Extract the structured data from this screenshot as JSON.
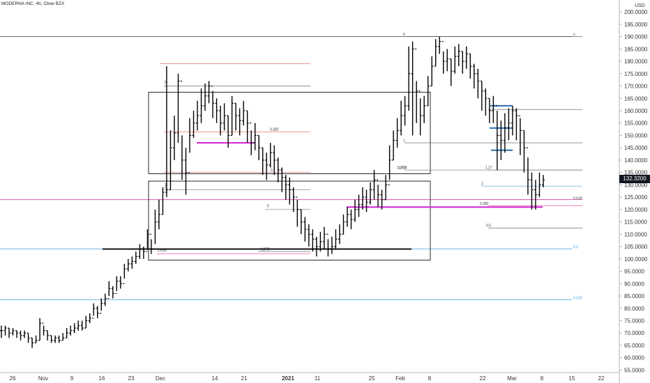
{
  "header": {
    "title": "MODERNA INC, 4h, Cboe BZX"
  },
  "currency": "USD",
  "last_price": "132.3200",
  "chart_data": {
    "type": "candlestick",
    "title": "MODERNA INC, 4h, Cboe BZX",
    "ylim": [
      54,
      202
    ],
    "y_ticks": [
      55,
      60,
      65,
      70,
      75,
      80,
      85,
      90,
      95,
      100,
      105,
      110,
      115,
      120,
      125,
      130,
      135,
      140,
      145,
      150,
      155,
      160,
      165,
      170,
      175,
      180,
      185,
      190,
      195,
      200
    ],
    "x_ticks": [
      "26",
      "Nov",
      "9",
      "16",
      "23",
      "Dec",
      "14",
      "21",
      "2021",
      "11",
      "25",
      "Feb",
      "8",
      "22",
      "Mar",
      "8",
      "15",
      "22"
    ],
    "ohlc_closes": [
      71,
      72,
      70,
      71,
      70,
      69,
      70,
      68,
      66,
      67,
      74,
      71,
      69,
      67,
      68,
      67,
      68,
      70,
      71,
      72,
      73,
      72,
      75,
      76,
      80,
      78,
      82,
      84,
      88,
      86,
      91,
      90,
      96,
      98,
      99,
      101,
      104,
      103,
      110,
      104,
      115,
      118,
      127,
      128,
      145,
      151,
      172,
      140,
      135,
      150,
      155,
      158,
      162,
      166,
      170,
      163,
      160,
      155,
      158,
      150,
      163,
      158,
      156,
      160,
      155,
      147,
      150,
      145,
      140,
      138,
      143,
      140,
      136,
      133,
      130,
      128,
      125,
      120,
      115,
      112,
      110,
      108,
      105,
      107,
      110,
      104,
      105,
      108,
      110,
      115,
      118,
      116,
      120,
      122,
      125,
      123,
      128,
      132,
      126,
      124,
      130,
      140,
      148,
      152,
      158,
      162,
      175,
      185,
      168,
      158,
      162,
      170,
      178,
      186,
      188,
      180,
      181,
      176,
      182,
      184,
      180,
      183,
      178,
      175,
      172,
      168,
      165,
      160,
      162,
      150,
      148,
      153,
      155,
      160,
      158,
      152,
      145,
      132,
      128,
      126,
      130,
      132
    ],
    "ohlc_highs": [
      73,
      73,
      72,
      72,
      71,
      71,
      71,
      70,
      68,
      69,
      76,
      73,
      71,
      69,
      69,
      69,
      70,
      72,
      73,
      74,
      75,
      75,
      77,
      78,
      82,
      81,
      84,
      86,
      91,
      89,
      93,
      93,
      98,
      100,
      101,
      103,
      106,
      105,
      112,
      108,
      120,
      124,
      129,
      178,
      152,
      158,
      175,
      150,
      145,
      157,
      160,
      164,
      169,
      171,
      172,
      168,
      165,
      162,
      163,
      158,
      166,
      163,
      161,
      164,
      160,
      152,
      155,
      150,
      145,
      143,
      147,
      146,
      141,
      137,
      134,
      133,
      129,
      124,
      120,
      117,
      114,
      112,
      109,
      111,
      113,
      108,
      109,
      112,
      114,
      118,
      121,
      120,
      124,
      126,
      129,
      128,
      131,
      136,
      130,
      128,
      134,
      146,
      152,
      157,
      164,
      166,
      186,
      188,
      172,
      165,
      166,
      174,
      182,
      189,
      190,
      184,
      185,
      181,
      186,
      187,
      184,
      186,
      183,
      179,
      177,
      172,
      169,
      165,
      166,
      160,
      156,
      159,
      161,
      162,
      161,
      157,
      152,
      141,
      135,
      132,
      135,
      134
    ],
    "ohlc_lows": [
      68,
      69,
      68,
      69,
      68,
      67,
      68,
      66,
      64,
      66,
      67,
      69,
      67,
      66,
      66,
      66,
      67,
      68,
      69,
      70,
      71,
      71,
      72,
      74,
      77,
      76,
      79,
      81,
      85,
      84,
      87,
      88,
      92,
      95,
      96,
      98,
      100,
      100,
      104,
      102,
      106,
      112,
      118,
      125,
      128,
      140,
      147,
      132,
      126,
      143,
      149,
      152,
      155,
      160,
      163,
      157,
      155,
      150,
      152,
      145,
      150,
      152,
      150,
      154,
      147,
      142,
      144,
      140,
      134,
      132,
      137,
      134,
      131,
      127,
      124,
      122,
      119,
      113,
      110,
      107,
      105,
      103,
      101,
      103,
      104,
      101,
      102,
      104,
      106,
      110,
      113,
      112,
      115,
      117,
      120,
      119,
      122,
      124,
      121,
      120,
      124,
      132,
      140,
      145,
      150,
      154,
      160,
      150,
      155,
      150,
      155,
      162,
      170,
      178,
      183,
      175,
      176,
      170,
      175,
      178,
      175,
      177,
      173,
      169,
      165,
      160,
      158,
      155,
      155,
      136,
      140,
      143,
      148,
      150,
      148,
      142,
      135,
      126,
      120,
      120,
      125,
      129
    ],
    "horizontal_lines": [
      {
        "y": 190,
        "color": "#555555",
        "label": "0"
      },
      {
        "y": 124,
        "color": "#e040a0",
        "label": ""
      },
      {
        "y": 104,
        "color": "#4aa3df",
        "label": "0.5"
      },
      {
        "y": 83.5,
        "color": "#4aa3df",
        "label": "0.618"
      }
    ],
    "fib_labels": [
      "0",
      "1",
      "0.382",
      "0",
      "1",
      "0",
      "1.618",
      "1.272",
      "0",
      "1",
      "1.272",
      "1.27",
      "1.618",
      "2",
      "0.382",
      "0.5",
      "0.618"
    ]
  }
}
